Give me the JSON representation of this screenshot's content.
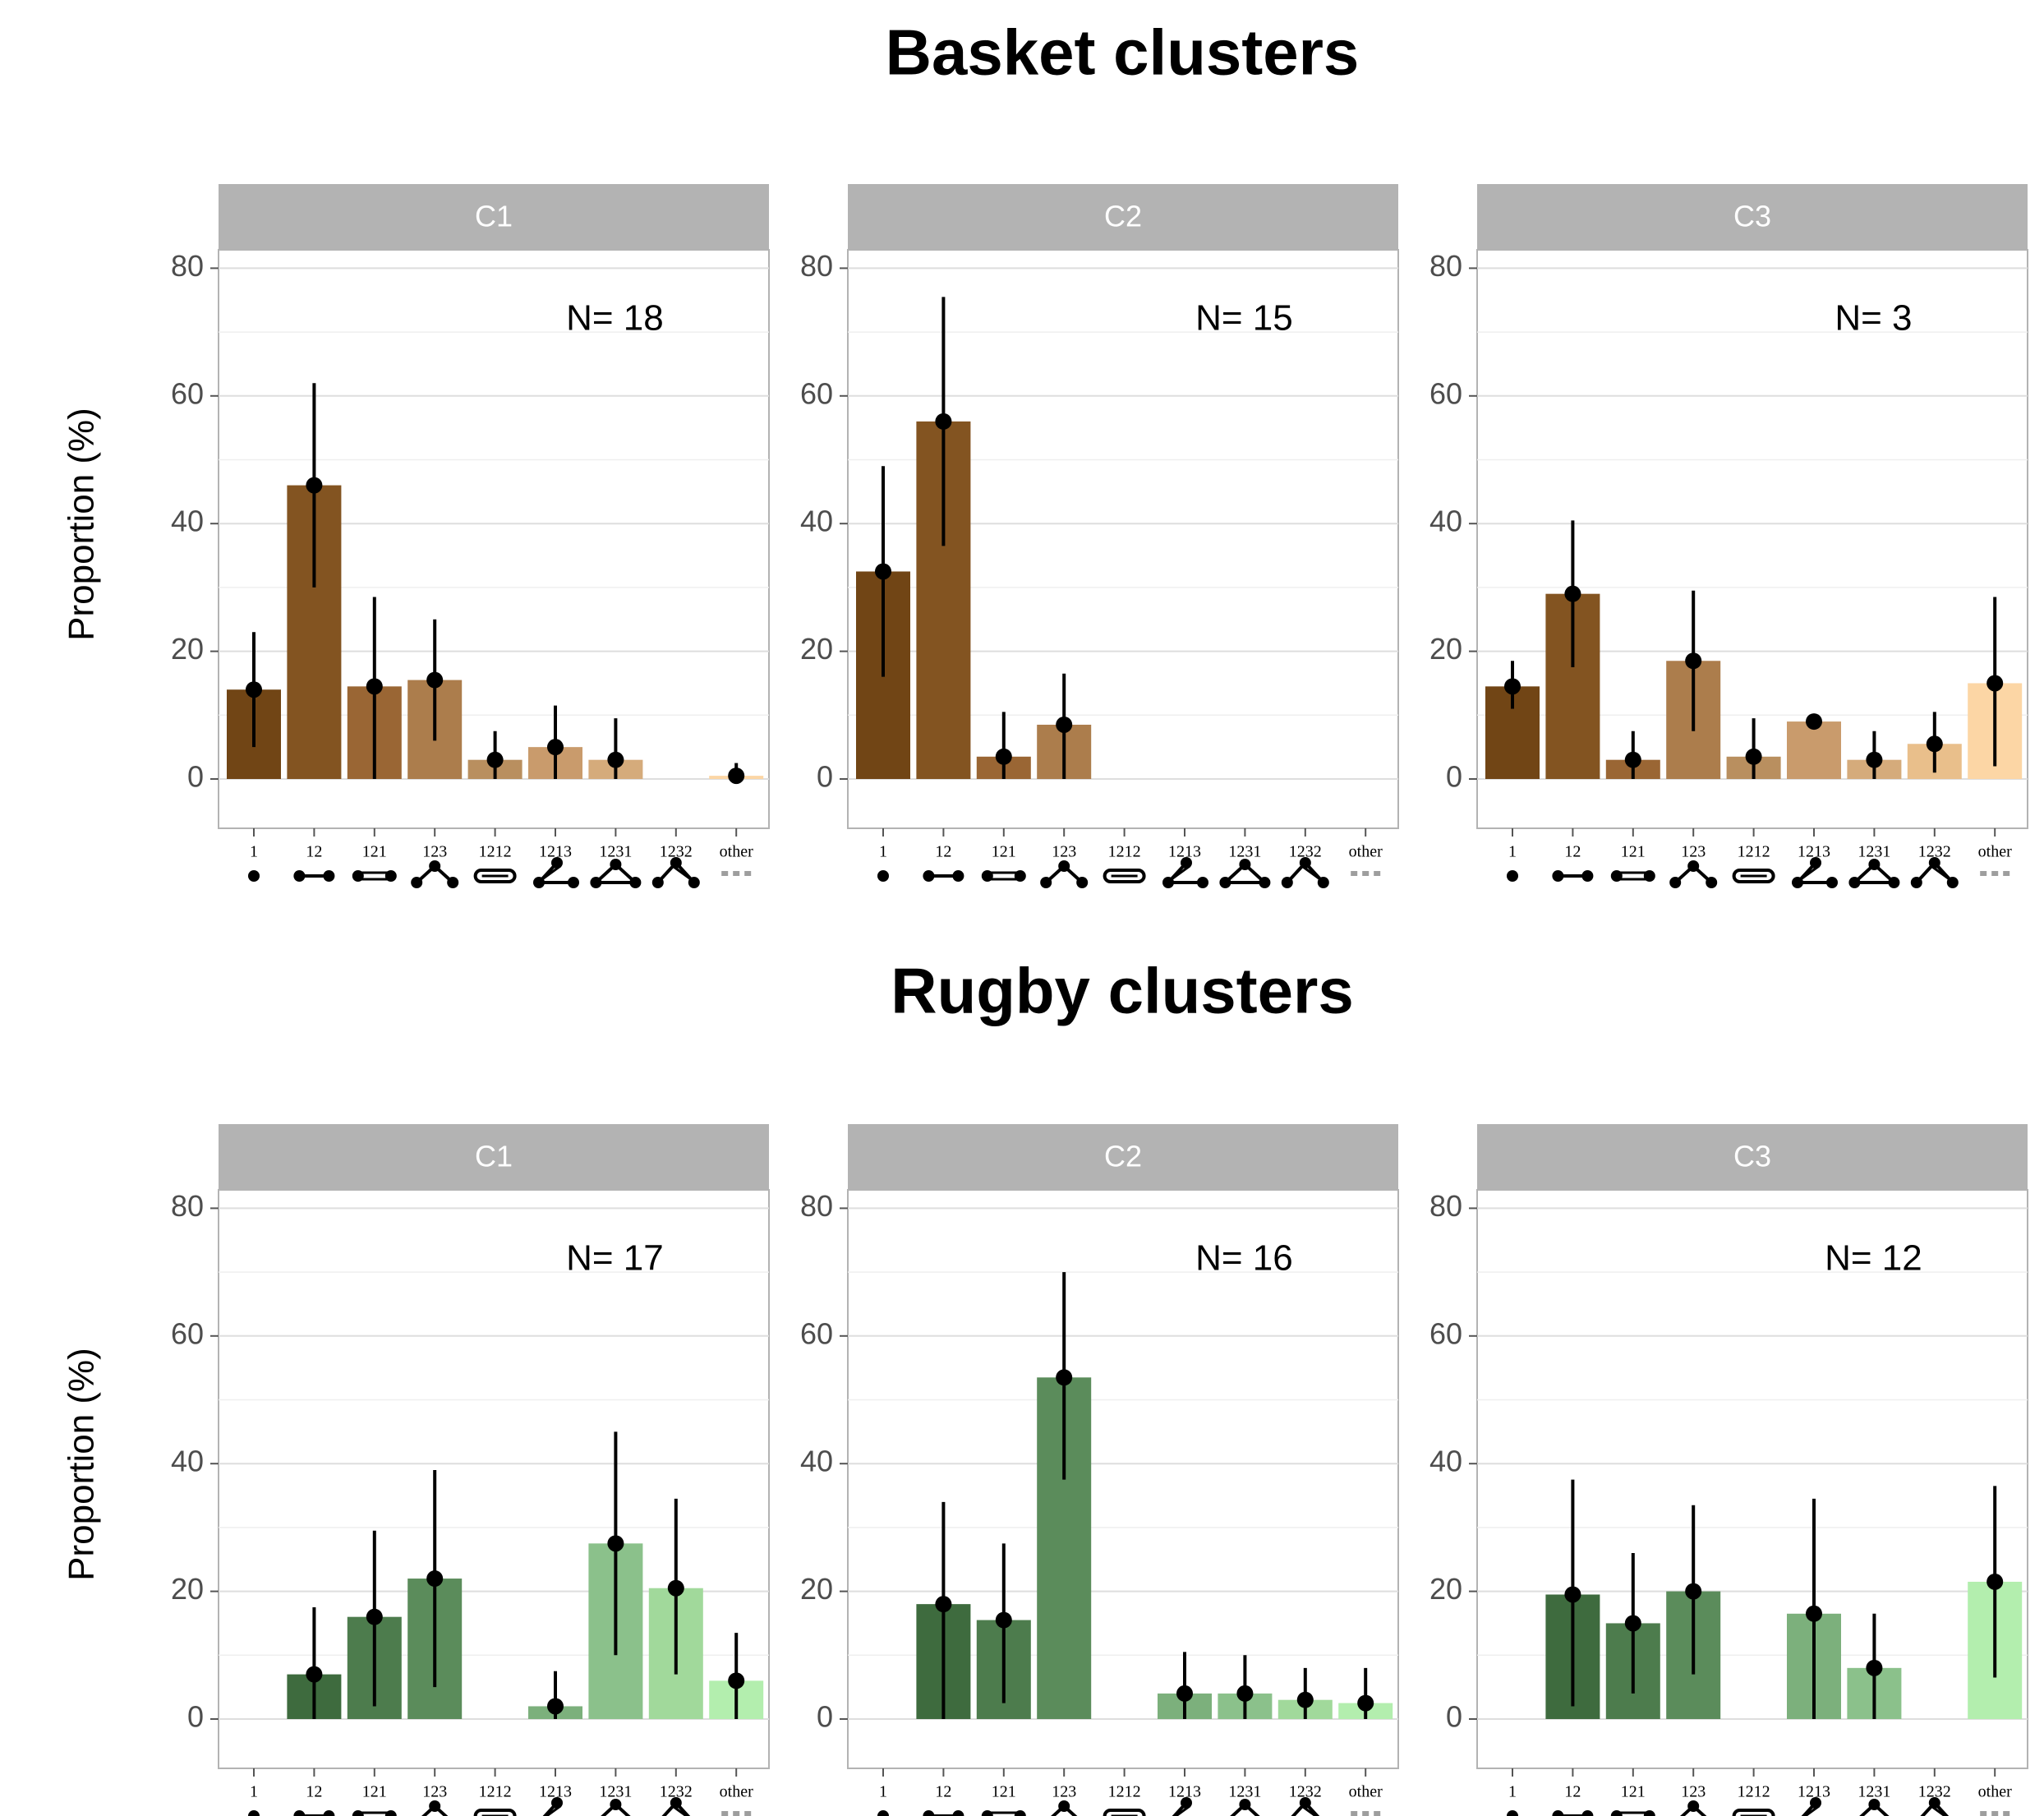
{
  "figure": {
    "sections": [
      {
        "title": "Basket clusters"
      },
      {
        "title": "Rugby clusters"
      }
    ],
    "ylabel": "Proportion (%)",
    "yticks": [
      "0",
      "20",
      "40",
      "60",
      "80"
    ],
    "categories": [
      "1",
      "12",
      "121",
      "123",
      "1212",
      "1213",
      "1231",
      "1232",
      "other"
    ],
    "colors": {
      "basket": [
        "#714515",
        "#835421",
        "#9a6634",
        "#ac7d4c",
        "#b98f5f",
        "#c99b6c",
        "#d5ab7b",
        "#e9bf8b",
        "#fcd6a5"
      ],
      "rugby": [
        "#2e5a2e",
        "#3e6b3e",
        "#4d7c4d",
        "#5b8c5b",
        "#6c9f6c",
        "#7cb07c",
        "#8bc18b",
        "#a1d99b",
        "#b3eeae"
      ]
    },
    "motif_icons": [
      "dot-icon",
      "pair-icon",
      "reciprocal-pair-icon",
      "triangle-open-icon",
      "double-reciprocal-icon",
      "cross-triangle-icon",
      "triangle-return-icon",
      "triangle-cross-icon",
      "ellipsis-icon"
    ]
  },
  "chart_data": [
    {
      "type": "bar",
      "section": "Basket clusters",
      "panel": "C1",
      "annotation": "N= 18",
      "categories": [
        "1",
        "12",
        "121",
        "123",
        "1212",
        "1213",
        "1231",
        "1232",
        "other"
      ],
      "values": [
        14,
        46,
        14.5,
        15.5,
        3,
        5,
        3,
        null,
        0.5
      ],
      "error_low": [
        5,
        30,
        0,
        6,
        0,
        0,
        0,
        null,
        0
      ],
      "error_high": [
        23,
        62,
        28.5,
        25,
        7.5,
        11.5,
        9.5,
        null,
        2.5
      ],
      "ylim": [
        0,
        90
      ],
      "ylabel": "Proportion (%)"
    },
    {
      "type": "bar",
      "section": "Basket clusters",
      "panel": "C2",
      "annotation": "N= 15",
      "categories": [
        "1",
        "12",
        "121",
        "123",
        "1212",
        "1213",
        "1231",
        "1232",
        "other"
      ],
      "values": [
        32.5,
        56,
        3.5,
        8.5,
        null,
        null,
        null,
        null,
        null
      ],
      "error_low": [
        16,
        36.5,
        0,
        0,
        null,
        null,
        null,
        null,
        null
      ],
      "error_high": [
        49,
        75.5,
        10.5,
        16.5,
        null,
        null,
        null,
        null,
        null
      ],
      "ylim": [
        0,
        90
      ],
      "ylabel": ""
    },
    {
      "type": "bar",
      "section": "Basket clusters",
      "panel": "C3",
      "annotation": "N= 3",
      "categories": [
        "1",
        "12",
        "121",
        "123",
        "1212",
        "1213",
        "1231",
        "1232",
        "other"
      ],
      "values": [
        14.5,
        29,
        3,
        18.5,
        3.5,
        9,
        3,
        5.5,
        15
      ],
      "error_low": [
        11,
        17.5,
        0,
        7.5,
        0,
        9,
        0,
        1,
        2
      ],
      "error_high": [
        18.5,
        40.5,
        7.5,
        29.5,
        9.5,
        9,
        7.5,
        10.5,
        28.5
      ],
      "ylim": [
        0,
        90
      ],
      "ylabel": ""
    },
    {
      "type": "bar",
      "section": "Rugby clusters",
      "panel": "C1",
      "annotation": "N= 17",
      "categories": [
        "1",
        "12",
        "121",
        "123",
        "1212",
        "1213",
        "1231",
        "1232",
        "other"
      ],
      "values": [
        null,
        7,
        16,
        22,
        null,
        2,
        27.5,
        20.5,
        6
      ],
      "error_low": [
        null,
        0,
        2,
        5,
        null,
        0,
        10,
        7,
        0
      ],
      "error_high": [
        null,
        17.5,
        29.5,
        39,
        null,
        7.5,
        45,
        34.5,
        13.5
      ],
      "ylim": [
        0,
        90
      ],
      "ylabel": "Proportion (%)"
    },
    {
      "type": "bar",
      "section": "Rugby clusters",
      "panel": "C2",
      "annotation": "N= 16",
      "categories": [
        "1",
        "12",
        "121",
        "123",
        "1212",
        "1213",
        "1231",
        "1232",
        "other"
      ],
      "values": [
        null,
        18,
        15.5,
        53.5,
        null,
        4,
        4,
        3,
        2.5
      ],
      "error_low": [
        null,
        0,
        2.5,
        37.5,
        null,
        0,
        0,
        0,
        0
      ],
      "error_high": [
        null,
        34,
        27.5,
        70,
        null,
        10.5,
        10,
        8,
        8
      ],
      "ylim": [
        0,
        90
      ],
      "ylabel": ""
    },
    {
      "type": "bar",
      "section": "Rugby clusters",
      "panel": "C3",
      "annotation": "N= 12",
      "categories": [
        "1",
        "12",
        "121",
        "123",
        "1212",
        "1213",
        "1231",
        "1232",
        "other"
      ],
      "values": [
        null,
        19.5,
        15,
        20,
        null,
        16.5,
        8,
        null,
        21.5
      ],
      "error_low": [
        null,
        2,
        4,
        7,
        null,
        0,
        0,
        null,
        6.5
      ],
      "error_high": [
        null,
        37.5,
        26,
        33.5,
        null,
        34.5,
        16.5,
        null,
        36.5
      ],
      "ylim": [
        0,
        90
      ],
      "ylabel": ""
    }
  ]
}
